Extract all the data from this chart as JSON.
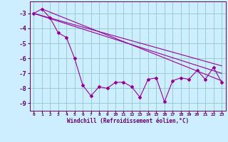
{
  "xlabel": "Windchill (Refroidissement éolien,°C)",
  "background_color": "#cceeff",
  "grid_color": "#99cccc",
  "line_color": "#990099",
  "x_hours": [
    0,
    1,
    2,
    3,
    4,
    5,
    6,
    7,
    8,
    9,
    10,
    11,
    12,
    13,
    14,
    15,
    16,
    17,
    18,
    19,
    20,
    21,
    22,
    23
  ],
  "windchill_actual": [
    -3.0,
    -2.7,
    -3.3,
    -4.3,
    -4.6,
    -6.0,
    -7.8,
    -8.5,
    -7.9,
    -8.0,
    -7.6,
    -7.6,
    -7.9,
    -8.6,
    -7.4,
    -7.3,
    -8.9,
    -7.5,
    -7.3,
    -7.4,
    -6.8,
    -7.4,
    -6.6,
    -7.6
  ],
  "trend1_x": [
    0,
    23
  ],
  "trend1_y": [
    -3.0,
    -7.0
  ],
  "trend2_x": [
    0,
    23
  ],
  "trend2_y": [
    -3.0,
    -6.5
  ],
  "trend3_x": [
    1,
    23
  ],
  "trend3_y": [
    -2.7,
    -7.5
  ],
  "ylim": [
    -9.5,
    -2.2
  ],
  "xlim": [
    -0.5,
    23.5
  ],
  "yticks": [
    -9,
    -8,
    -7,
    -6,
    -5,
    -4,
    -3
  ],
  "xticks": [
    0,
    1,
    2,
    3,
    4,
    5,
    6,
    7,
    8,
    9,
    10,
    11,
    12,
    13,
    14,
    15,
    16,
    17,
    18,
    19,
    20,
    21,
    22,
    23
  ],
  "xtick_labels": [
    "0",
    "1",
    "2",
    "3",
    "4",
    "5",
    "6",
    "7",
    "8",
    "9",
    "10",
    "11",
    "12",
    "13",
    "14",
    "15",
    "16",
    "17",
    "18",
    "19",
    "20",
    "21",
    "22",
    "23"
  ]
}
